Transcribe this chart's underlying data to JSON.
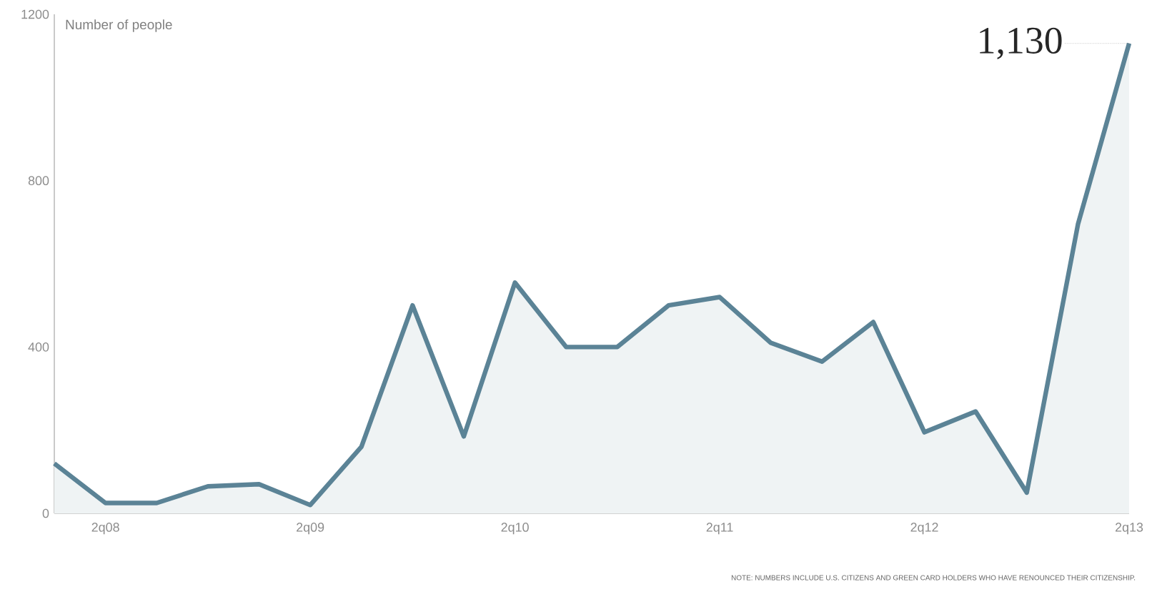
{
  "chart_data": {
    "type": "area",
    "ylabel": "Number of people",
    "categories": [
      null,
      "2q08",
      null,
      null,
      null,
      "2q09",
      null,
      null,
      null,
      "2q10",
      null,
      null,
      null,
      "2q11",
      null,
      null,
      null,
      "2q12",
      null,
      null,
      null,
      "2q13"
    ],
    "series": [
      {
        "color": "#5b8396",
        "values": [
          120,
          25,
          25,
          65,
          70,
          20,
          160,
          500,
          185,
          555,
          400,
          400,
          500,
          520,
          410,
          365,
          460,
          195,
          245,
          50,
          695,
          1130
        ]
      }
    ],
    "ylim": [
      0,
      1200
    ],
    "yticks": [
      0,
      400,
      800,
      1200
    ],
    "grid": false,
    "annotations": [
      {
        "text": "1,130",
        "x": "2q13",
        "y": 1130
      },
      "NOTE: NUMBERS INCLUDE U.S. CITIZENS AND GREEN CARD HOLDERS WHO HAVE RENOUNCED THEIR CITIZENSHIP."
    ]
  }
}
